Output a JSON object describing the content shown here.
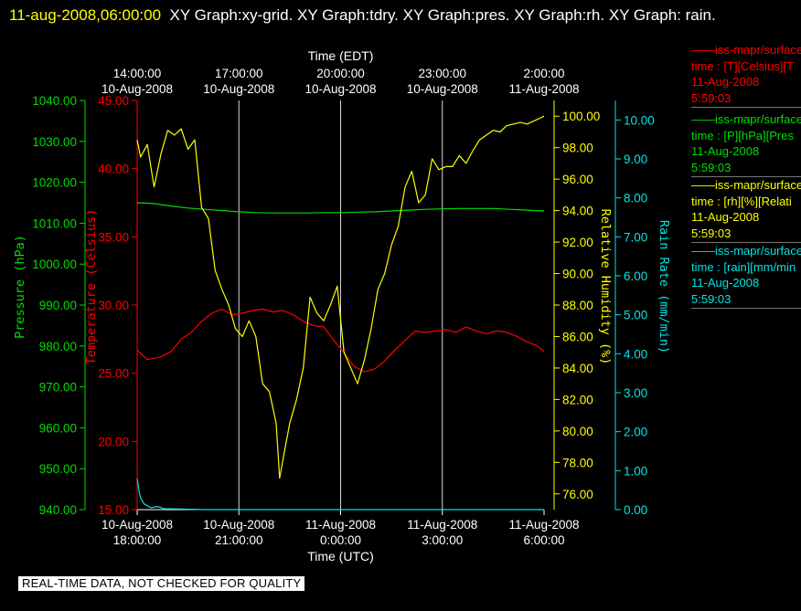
{
  "header": {
    "timestamp": "11-aug-2008,06:00:00",
    "graphs": "XY Graph:xy-grid.  XY Graph:tdry.  XY Graph:pres.  XY Graph:rh.  XY Graph: rain."
  },
  "footer": {
    "quality_notice": "REAL-TIME DATA, NOT CHECKED FOR QUALITY"
  },
  "colors": {
    "temperature": "#ff0000",
    "pressure": "#00dd00",
    "humidity": "#ffff00",
    "rain": "#00e5e5",
    "grid": "#ffffff"
  },
  "legend": [
    {
      "line1": "iss-mapr/surface",
      "line2": "time : [T][Celsius][T",
      "line3": "11-Aug-2008",
      "line4": "5:59:03",
      "color": "#ff0000"
    },
    {
      "line1": "iss-mapr/surface",
      "line2": "time : [P][hPa][Pres",
      "line3": "11-Aug-2008",
      "line4": "5:59:03",
      "color": "#00dd00"
    },
    {
      "line1": "iss-mapr/surface",
      "line2": "time : [rh][%][Relati",
      "line3": "11-Aug-2008",
      "line4": "5:59:03",
      "color": "#ffff00"
    },
    {
      "line1": "iss-mapr/surface",
      "line2": "time : [rain][mm/min",
      "line3": "11-Aug-2008",
      "line4": "5:59:03",
      "color": "#00e5e5"
    }
  ],
  "chart_data": {
    "type": "line",
    "grid": true,
    "top_axis": {
      "label": "Time (EDT)",
      "ticks": [
        {
          "t": "14:00:00",
          "d": "10-Aug-2008"
        },
        {
          "t": "17:00:00",
          "d": "10-Aug-2008"
        },
        {
          "t": "20:00:00",
          "d": "10-Aug-2008"
        },
        {
          "t": "23:00:00",
          "d": "10-Aug-2008"
        },
        {
          "t": "2:00:00",
          "d": "11-Aug-2008"
        }
      ]
    },
    "bottom_axis": {
      "label": "Time (UTC)",
      "xlim": [
        18.0,
        30.0
      ],
      "ticks": [
        {
          "d": "10-Aug-2008",
          "t": "18:00:00"
        },
        {
          "d": "10-Aug-2008",
          "t": "21:00:00"
        },
        {
          "d": "11-Aug-2008",
          "t": "0:00:00"
        },
        {
          "d": "11-Aug-2008",
          "t": "3:00:00"
        },
        {
          "d": "11-Aug-2008",
          "t": "6:00:00"
        }
      ]
    },
    "axes": {
      "pressure": {
        "label": "Pressure (hPa)",
        "ylim": [
          940,
          1040
        ],
        "ticks": [
          "940.00",
          "950.00",
          "960.00",
          "970.00",
          "980.00",
          "990.00",
          "1000.00",
          "1010.00",
          "1020.00",
          "1030.00",
          "1040.00"
        ]
      },
      "temperature": {
        "label": "Temperature (Celsius)",
        "ylim": [
          15,
          45
        ],
        "ticks": [
          "15.00",
          "20.00",
          "25.00",
          "30.00",
          "35.00",
          "40.00",
          "45.00"
        ]
      },
      "humidity": {
        "label": "Relative Humidity (%)",
        "ylim": [
          75,
          101
        ],
        "ticks": [
          "76.00",
          "78.00",
          "80.00",
          "82.00",
          "84.00",
          "86.00",
          "88.00",
          "90.00",
          "92.00",
          "94.00",
          "96.00",
          "98.00",
          "100.00"
        ]
      },
      "rain": {
        "label": "Rain Rate (mm/min)",
        "ylim": [
          0,
          10.5
        ],
        "ticks": [
          "0.00",
          "1.00",
          "2.00",
          "3.00",
          "4.00",
          "5.00",
          "6.00",
          "7.00",
          "8.00",
          "9.00",
          "10.00"
        ]
      }
    },
    "series": [
      {
        "key": "temperature",
        "x": [
          18.0,
          18.3,
          18.7,
          19.0,
          19.3,
          19.6,
          19.9,
          20.2,
          20.5,
          20.8,
          21.1,
          21.4,
          21.7,
          22.0,
          22.3,
          22.6,
          22.9,
          23.2,
          23.5,
          23.8,
          24.1,
          24.4,
          24.7,
          25.0,
          25.3,
          25.6,
          25.9,
          26.2,
          26.5,
          26.8,
          27.1,
          27.4,
          27.7,
          28.0,
          28.3,
          28.6,
          28.9,
          29.2,
          29.5,
          29.8,
          30.0
        ],
        "y": [
          26.7,
          26.0,
          26.2,
          26.6,
          27.5,
          28.0,
          28.8,
          29.4,
          29.7,
          29.3,
          29.4,
          29.6,
          29.7,
          29.5,
          29.6,
          29.3,
          28.8,
          28.5,
          28.4,
          27.4,
          26.5,
          25.5,
          25.1,
          25.3,
          25.9,
          26.7,
          27.4,
          28.1,
          28.0,
          28.1,
          28.2,
          28.0,
          28.4,
          28.1,
          27.9,
          28.1,
          28.0,
          27.7,
          27.3,
          27.0,
          26.6
        ]
      },
      {
        "key": "pressure",
        "x": [
          18.0,
          18.5,
          19.0,
          19.5,
          20.0,
          20.5,
          21.0,
          21.5,
          22.0,
          22.5,
          23.0,
          23.5,
          24.0,
          24.5,
          25.0,
          25.5,
          26.0,
          26.5,
          27.0,
          27.5,
          28.0,
          28.5,
          29.0,
          29.5,
          30.0
        ],
        "y": [
          1015.0,
          1014.8,
          1014.2,
          1013.7,
          1013.4,
          1013.1,
          1012.8,
          1012.6,
          1012.5,
          1012.5,
          1012.5,
          1012.6,
          1012.6,
          1012.7,
          1012.8,
          1013.0,
          1013.2,
          1013.4,
          1013.5,
          1013.6,
          1013.6,
          1013.6,
          1013.4,
          1013.2,
          1013.0
        ]
      },
      {
        "key": "humidity",
        "x": [
          18.0,
          18.1,
          18.3,
          18.5,
          18.7,
          18.9,
          19.1,
          19.3,
          19.5,
          19.7,
          19.9,
          20.1,
          20.3,
          20.5,
          20.7,
          20.9,
          21.1,
          21.3,
          21.5,
          21.7,
          21.9,
          22.1,
          22.2,
          22.3,
          22.5,
          22.7,
          22.9,
          23.1,
          23.3,
          23.5,
          23.7,
          23.9,
          24.1,
          24.3,
          24.5,
          24.7,
          24.9,
          25.1,
          25.3,
          25.5,
          25.7,
          25.9,
          26.1,
          26.3,
          26.5,
          26.7,
          26.9,
          27.1,
          27.3,
          27.5,
          27.7,
          27.9,
          28.1,
          28.3,
          28.5,
          28.7,
          28.9,
          29.1,
          29.3,
          29.5,
          29.7,
          29.9,
          30.0
        ],
        "y": [
          98.5,
          97.4,
          98.2,
          95.5,
          97.6,
          99.1,
          98.8,
          99.2,
          97.9,
          98.5,
          94.2,
          93.5,
          90.2,
          89.0,
          88.0,
          86.5,
          86.0,
          87.0,
          86.0,
          83.0,
          82.5,
          80.5,
          77.0,
          78.2,
          80.5,
          82.0,
          84.0,
          88.5,
          87.5,
          87.0,
          88.0,
          89.2,
          85.0,
          84.0,
          83.0,
          84.5,
          86.5,
          89.0,
          90.0,
          91.8,
          93.0,
          95.5,
          96.5,
          94.5,
          95.0,
          97.3,
          96.6,
          96.8,
          96.8,
          97.5,
          97.0,
          97.8,
          98.5,
          98.8,
          99.1,
          99.0,
          99.4,
          99.5,
          99.6,
          99.5,
          99.7,
          99.9,
          100.0
        ]
      },
      {
        "key": "rain",
        "x": [
          18.0,
          18.05,
          18.1,
          18.2,
          18.3,
          18.4,
          18.6,
          18.8,
          19.0,
          20.0,
          22.0,
          24.0,
          26.0,
          28.0,
          30.0
        ],
        "y": [
          0.8,
          0.5,
          0.3,
          0.15,
          0.1,
          0.05,
          0.08,
          0.02,
          0.02,
          0.0,
          0.0,
          0.0,
          0.0,
          0.0,
          0.0
        ]
      }
    ]
  }
}
